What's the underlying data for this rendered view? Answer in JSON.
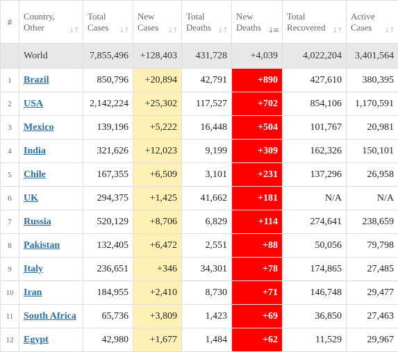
{
  "columns": {
    "num": "#",
    "country": [
      "Country,",
      "Other"
    ],
    "total_cases": [
      "Total",
      "Cases"
    ],
    "new_cases": [
      "New",
      "Cases"
    ],
    "total_deaths": [
      "Total",
      "Deaths"
    ],
    "new_deaths": [
      "New",
      "Deaths"
    ],
    "total_recovered": [
      "Total",
      "Recovered"
    ],
    "active_cases": [
      "Active",
      "Cases"
    ]
  },
  "world": {
    "country": "World",
    "total_cases": "7,855,496",
    "new_cases": "+128,403",
    "total_deaths": "431,728",
    "new_deaths": "+4,039",
    "total_recovered": "4,022,204",
    "active_cases": "3,401,564"
  },
  "rows": [
    {
      "num": "1",
      "country": "Brazil",
      "total_cases": "850,796",
      "new_cases": "+20,894",
      "total_deaths": "42,791",
      "new_deaths": "+890",
      "total_recovered": "427,610",
      "active_cases": "380,395"
    },
    {
      "num": "2",
      "country": "USA",
      "total_cases": "2,142,224",
      "new_cases": "+25,302",
      "total_deaths": "117,527",
      "new_deaths": "+702",
      "total_recovered": "854,106",
      "active_cases": "1,170,591"
    },
    {
      "num": "3",
      "country": "Mexico",
      "total_cases": "139,196",
      "new_cases": "+5,222",
      "total_deaths": "16,448",
      "new_deaths": "+504",
      "total_recovered": "101,767",
      "active_cases": "20,981"
    },
    {
      "num": "4",
      "country": "India",
      "total_cases": "321,626",
      "new_cases": "+12,023",
      "total_deaths": "9,199",
      "new_deaths": "+309",
      "total_recovered": "162,326",
      "active_cases": "150,101"
    },
    {
      "num": "5",
      "country": "Chile",
      "total_cases": "167,355",
      "new_cases": "+6,509",
      "total_deaths": "3,101",
      "new_deaths": "+231",
      "total_recovered": "137,296",
      "active_cases": "26,958"
    },
    {
      "num": "6",
      "country": "UK",
      "total_cases": "294,375",
      "new_cases": "+1,425",
      "total_deaths": "41,662",
      "new_deaths": "+181",
      "total_recovered": "N/A",
      "active_cases": "N/A"
    },
    {
      "num": "7",
      "country": "Russia",
      "total_cases": "520,129",
      "new_cases": "+8,706",
      "total_deaths": "6,829",
      "new_deaths": "+114",
      "total_recovered": "274,641",
      "active_cases": "238,659"
    },
    {
      "num": "8",
      "country": "Pakistan",
      "total_cases": "132,405",
      "new_cases": "+6,472",
      "total_deaths": "2,551",
      "new_deaths": "+88",
      "total_recovered": "50,056",
      "active_cases": "79,798"
    },
    {
      "num": "9",
      "country": "Italy",
      "total_cases": "236,651",
      "new_cases": "+346",
      "total_deaths": "34,301",
      "new_deaths": "+78",
      "total_recovered": "174,865",
      "active_cases": "27,485"
    },
    {
      "num": "10",
      "country": "Iran",
      "total_cases": "184,955",
      "new_cases": "+2,410",
      "total_deaths": "8,730",
      "new_deaths": "+71",
      "total_recovered": "146,748",
      "active_cases": "29,477"
    },
    {
      "num": "11",
      "country": "South Africa",
      "total_cases": "65,736",
      "new_cases": "+3,809",
      "total_deaths": "1,423",
      "new_deaths": "+69",
      "total_recovered": "36,850",
      "active_cases": "27,463"
    },
    {
      "num": "12",
      "country": "Egypt",
      "total_cases": "42,980",
      "new_cases": "+1,677",
      "total_deaths": "1,484",
      "new_deaths": "+62",
      "total_recovered": "11,529",
      "active_cases": "29,967"
    }
  ],
  "sort": {
    "column": "new_deaths",
    "direction": "desc"
  },
  "colors": {
    "new_cases_bg": "#fff0b5",
    "new_deaths_bg": "#ff0000",
    "world_row_bg": "#e8e8e8",
    "link": "#2a6fa8"
  }
}
